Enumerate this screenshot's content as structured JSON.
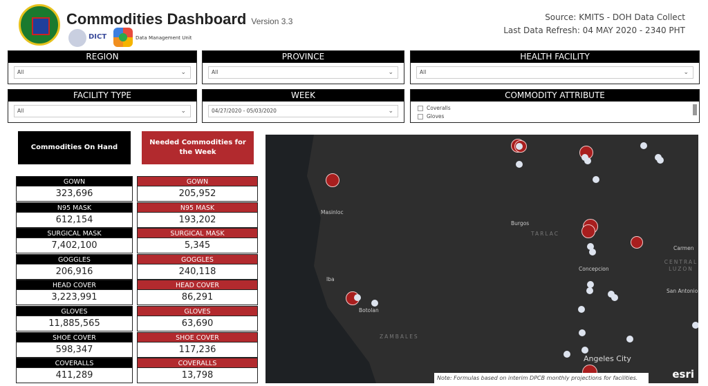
{
  "header": {
    "title": "Commodities Dashboard",
    "version": "Version 3.3",
    "dict_logo_text": "DICT",
    "unit": "Data Management Unit",
    "source": "Source: KMITS - DOH Data Collect",
    "refresh": "Last Data Refresh: 04 MAY 2020 - 2340 PHT"
  },
  "filters": {
    "region": {
      "label": "REGION",
      "value": "All"
    },
    "province": {
      "label": "PROVINCE",
      "value": "All"
    },
    "facility": {
      "label": "HEALTH FACILITY",
      "value": "All"
    },
    "facility_type": {
      "label": "FACILITY TYPE",
      "value": "All"
    },
    "week": {
      "label": "WEEK",
      "value": "04/27/2020 - 05/03/2020"
    },
    "attribute": {
      "label": "COMMODITY ATTRIBUTE",
      "options": [
        "Coveralls",
        "Gloves"
      ]
    }
  },
  "buttons": {
    "on_hand": "Commodities On Hand",
    "needed": "Needed Commodities for the Week"
  },
  "on_hand": [
    {
      "label": "GOWN",
      "value": "323,696"
    },
    {
      "label": "N95 MASK",
      "value": "612,154"
    },
    {
      "label": "SURGICAL MASK",
      "value": "7,402,100"
    },
    {
      "label": "GOGGLES",
      "value": "206,916"
    },
    {
      "label": "HEAD COVER",
      "value": "3,223,991"
    },
    {
      "label": "GLOVES",
      "value": "11,885,565"
    },
    {
      "label": "SHOE COVER",
      "value": "598,347"
    },
    {
      "label": "COVERALLS",
      "value": "411,289"
    }
  ],
  "needed": [
    {
      "label": "GOWN",
      "value": "205,952"
    },
    {
      "label": "N95 MASK",
      "value": "193,202"
    },
    {
      "label": "SURGICAL MASK",
      "value": "5,345"
    },
    {
      "label": "GOGGLES",
      "value": "240,118"
    },
    {
      "label": "HEAD COVER",
      "value": "86,291"
    },
    {
      "label": "GLOVES",
      "value": "63,690"
    },
    {
      "label": "SHOE COVER",
      "value": "117,236"
    },
    {
      "label": "COVERALLS",
      "value": "13,798"
    }
  ],
  "map": {
    "labels": [
      "Masinloc",
      "Burgos",
      "TARLAC",
      "Concepcion",
      "Carmen",
      "CENTRAL LUZON",
      "San Antonio",
      "Iba",
      "Botolan",
      "ZAMBALES",
      "Angeles City"
    ],
    "note": "Note: Formulas based on interim DPCB monthly projections for facilities.",
    "attribution": "esri"
  },
  "colors": {
    "needed_red": "#b22a2e",
    "black": "#000000",
    "map_bg": "#2e2e2e",
    "point_red": "#a81e1e",
    "point_white": "#dde3ee"
  }
}
